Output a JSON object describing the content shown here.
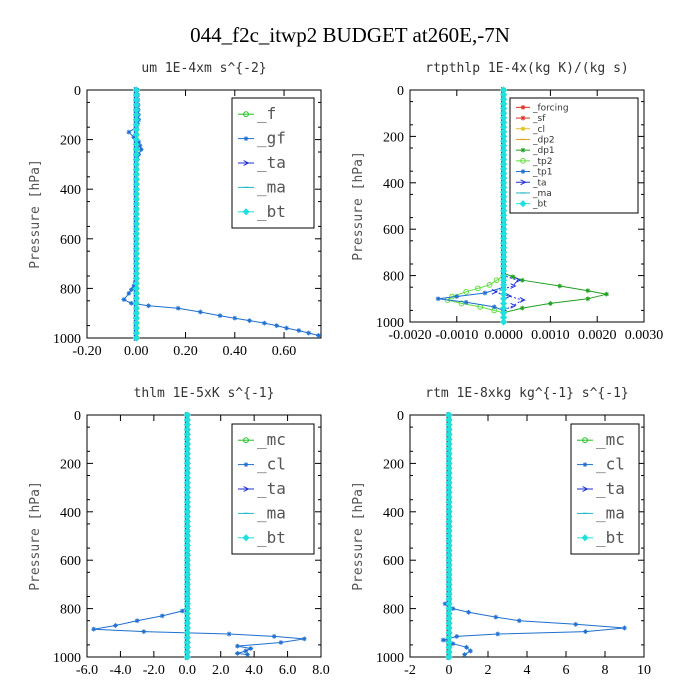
{
  "figure": {
    "title": "044_f2c_itwp2  BUDGET at260E,-7N"
  },
  "chart_data": [
    {
      "type": "line",
      "title": "um   1E-4xm s^{-2}",
      "ylabel": "Pressure [hPa]",
      "xlim": [
        -0.2,
        0.75
      ],
      "ylim": [
        1000,
        0
      ],
      "xticks": [
        -0.2,
        0.0,
        0.2,
        0.4,
        0.6
      ],
      "xticklabels": [
        "-0.20",
        "0.00",
        "0.20",
        "0.40",
        "0.60"
      ],
      "yticks": [
        0,
        200,
        400,
        600,
        800,
        1000
      ],
      "yticklabels": [
        "0",
        "200",
        "400",
        "600",
        "800",
        "1000"
      ],
      "grid": false,
      "legend_style": "large",
      "series": [
        {
          "name": "_f",
          "color": "#22c022",
          "marker": "circle",
          "x": [
            0,
            0
          ],
          "y": [
            0,
            1000
          ]
        },
        {
          "name": "_gf",
          "color": "#1e6fd0",
          "marker": "cross",
          "x": [
            0.005,
            0.01,
            0.0,
            -0.03,
            -0.01,
            0.01,
            0.02,
            0.01,
            0.0,
            0.0,
            0.0,
            0.0,
            -0.01,
            -0.03,
            -0.05,
            -0.02,
            0.05,
            0.17,
            0.26,
            0.34,
            0.4,
            0.46,
            0.52,
            0.57,
            0.61,
            0.66,
            0.7,
            0.74
          ],
          "y": [
            0,
            120,
            150,
            170,
            190,
            210,
            240,
            260,
            300,
            400,
            600,
            760,
            790,
            820,
            845,
            860,
            870,
            880,
            895,
            910,
            920,
            930,
            940,
            950,
            960,
            970,
            980,
            990
          ]
        },
        {
          "name": "_ta",
          "color": "#1f2fd8",
          "marker": "arrow",
          "x": [
            0,
            0
          ],
          "y": [
            0,
            1000
          ]
        },
        {
          "name": "_ma",
          "color": "#22b8c8",
          "marker": "dash",
          "x": [
            0,
            0
          ],
          "y": [
            0,
            1000
          ]
        },
        {
          "name": "_bt",
          "color": "#20e0e0",
          "marker": "diamond",
          "x": [
            0,
            0
          ],
          "y": [
            0,
            1000
          ]
        }
      ]
    },
    {
      "type": "line",
      "title": "rtpthlp   1E-4x(kg K)/(kg s)",
      "ylabel": "Pressure [hPa]",
      "xlim": [
        -0.002,
        0.003
      ],
      "ylim": [
        1000,
        0
      ],
      "xticks": [
        -0.002,
        -0.001,
        0.0,
        0.001,
        0.002,
        0.003
      ],
      "xticklabels": [
        "-0.0020",
        "-0.0010",
        "0.0000",
        "0.0010",
        "0.0020",
        "0.0030"
      ],
      "yticks": [
        0,
        200,
        400,
        600,
        800,
        1000
      ],
      "yticklabels": [
        "0",
        "200",
        "400",
        "600",
        "800",
        "1000"
      ],
      "grid": false,
      "legend_style": "small",
      "series": [
        {
          "name": "_forcing",
          "color": "#e03020",
          "marker": "cross",
          "x": [
            0,
            0
          ],
          "y": [
            0,
            1000
          ]
        },
        {
          "name": "_sf",
          "color": "#e03020",
          "marker": "cross",
          "x": [
            0,
            0
          ],
          "y": [
            0,
            1000
          ]
        },
        {
          "name": "_cl",
          "color": "#e0c020",
          "marker": "cross",
          "x": [
            0,
            0
          ],
          "y": [
            0,
            1000
          ]
        },
        {
          "name": "_dp2",
          "color": "#e0a020",
          "marker": "dash",
          "x": [
            0,
            0
          ],
          "y": [
            0,
            1000
          ]
        },
        {
          "name": "_dp1",
          "color": "#20a020",
          "marker": "cross",
          "x": [
            0,
            0.0,
            0.0004,
            0.0012,
            0.0018,
            0.0022,
            0.0018,
            0.001,
            0.0004,
            0.0
          ],
          "y": [
            0,
            790,
            820,
            845,
            865,
            880,
            900,
            920,
            940,
            960
          ]
        },
        {
          "name": "_tp2",
          "color": "#60e040",
          "marker": "circle",
          "x": [
            0,
            0.0,
            -0.0003,
            -0.0008,
            -0.0011,
            -0.0012,
            -0.0009,
            -0.0005,
            -0.0002,
            0.0
          ],
          "y": [
            0,
            800,
            840,
            870,
            890,
            905,
            920,
            935,
            950,
            960
          ]
        },
        {
          "name": "_tp1",
          "color": "#1e6fd0",
          "marker": "cross",
          "x": [
            0,
            0.0,
            -0.0004,
            -0.001,
            -0.0014,
            -0.0008,
            -0.0002,
            0.0
          ],
          "y": [
            0,
            850,
            875,
            890,
            900,
            915,
            935,
            950
          ]
        },
        {
          "name": "_ta",
          "color": "#1f2fd8",
          "marker": "arrow",
          "x": [
            0,
            0.0,
            0.0003,
            0.0002,
            -0.0002,
            0.0004,
            0.0002,
            0.0
          ],
          "y": [
            0,
            800,
            820,
            845,
            870,
            905,
            930,
            950
          ]
        },
        {
          "name": "_ma",
          "color": "#22b8c8",
          "marker": "dash",
          "x": [
            0,
            0
          ],
          "y": [
            0,
            1000
          ]
        },
        {
          "name": "_bt",
          "color": "#20e0e0",
          "marker": "diamond",
          "x": [
            0,
            0
          ],
          "y": [
            0,
            1000
          ]
        }
      ]
    },
    {
      "type": "line",
      "title": "thlm   1E-5xK s^{-1}",
      "ylabel": "Pressure [hPa]",
      "xlim": [
        -6.0,
        8.0
      ],
      "ylim": [
        1000,
        0
      ],
      "xticks": [
        -6,
        -4,
        -2,
        0,
        2,
        4,
        6,
        8
      ],
      "xticklabels": [
        "-6.0",
        "-4.0",
        "-2.0",
        "0.0",
        "2.0",
        "4.0",
        "6.0",
        "8.0"
      ],
      "yticks": [
        0,
        200,
        400,
        600,
        800,
        1000
      ],
      "yticklabels": [
        "0",
        "200",
        "400",
        "600",
        "800",
        "1000"
      ],
      "grid": false,
      "legend_style": "large",
      "series": [
        {
          "name": "_mc",
          "color": "#22c022",
          "marker": "circle",
          "x": [
            0,
            0
          ],
          "y": [
            0,
            1000
          ]
        },
        {
          "name": "_cl",
          "color": "#1e6fd0",
          "marker": "cross",
          "x": [
            0.0,
            0.0,
            -0.3,
            -1.5,
            -3.0,
            -4.3,
            -5.6,
            -2.6,
            2.5,
            5.2,
            7.0,
            5.6,
            3.0,
            3.8,
            3.5,
            3.0,
            3.6
          ],
          "y": [
            0,
            790,
            810,
            830,
            850,
            870,
            885,
            895,
            905,
            915,
            925,
            940,
            955,
            965,
            975,
            985,
            990
          ]
        },
        {
          "name": "_ta",
          "color": "#1f2fd8",
          "marker": "arrow",
          "x": [
            0,
            0
          ],
          "y": [
            0,
            1000
          ]
        },
        {
          "name": "_ma",
          "color": "#22b8c8",
          "marker": "dash",
          "x": [
            0,
            0
          ],
          "y": [
            0,
            1000
          ]
        },
        {
          "name": "_bt",
          "color": "#20e0e0",
          "marker": "diamond",
          "x": [
            0,
            0
          ],
          "y": [
            0,
            1000
          ]
        }
      ]
    },
    {
      "type": "line",
      "title": "rtm   1E-8xkg kg^{-1} s^{-1}",
      "ylabel": "Pressure [hPa]",
      "xlim": [
        -2,
        10
      ],
      "ylim": [
        1000,
        0
      ],
      "xticks": [
        -2,
        0,
        2,
        4,
        6,
        8,
        10
      ],
      "xticklabels": [
        "-2",
        "0",
        "2",
        "4",
        "6",
        "8",
        "10"
      ],
      "yticks": [
        0,
        200,
        400,
        600,
        800,
        1000
      ],
      "yticklabels": [
        "0",
        "200",
        "400",
        "600",
        "800",
        "1000"
      ],
      "grid": false,
      "legend_style": "large",
      "series": [
        {
          "name": "_mc",
          "color": "#22c022",
          "marker": "circle",
          "x": [
            0,
            0
          ],
          "y": [
            0,
            1000
          ]
        },
        {
          "name": "_cl",
          "color": "#1e6fd0",
          "marker": "cross",
          "x": [
            0.0,
            0.0,
            -0.2,
            0.2,
            1.0,
            2.4,
            3.6,
            6.5,
            9.0,
            7.0,
            2.5,
            0.4,
            -0.3,
            0.2,
            0.9,
            1.1,
            0.8
          ],
          "y": [
            0,
            770,
            780,
            800,
            815,
            835,
            850,
            865,
            880,
            895,
            905,
            915,
            930,
            945,
            960,
            975,
            990
          ]
        },
        {
          "name": "_ta",
          "color": "#1f2fd8",
          "marker": "arrow",
          "x": [
            0,
            0
          ],
          "y": [
            0,
            1000
          ]
        },
        {
          "name": "_ma",
          "color": "#22b8c8",
          "marker": "dash",
          "x": [
            0,
            0
          ],
          "y": [
            0,
            1000
          ]
        },
        {
          "name": "_bt",
          "color": "#20e0e0",
          "marker": "diamond",
          "x": [
            0,
            0
          ],
          "y": [
            0,
            1000
          ]
        }
      ]
    }
  ]
}
